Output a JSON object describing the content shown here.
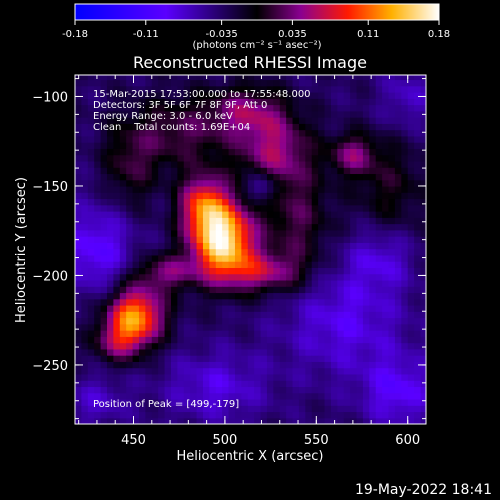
{
  "chart_data": {
    "type": "heatmap",
    "title": "Reconstructed RHESSI Image",
    "xlabel": "Heliocentric X (arcsec)",
    "ylabel": "Heliocentric Y (arcsec)",
    "xlim": [
      418,
      610
    ],
    "ylim": [
      -283,
      -88
    ],
    "xticks": [
      450,
      500,
      550,
      600
    ],
    "yticks": [
      -100,
      -150,
      -200,
      -250
    ],
    "colorbar": {
      "min": -0.18,
      "max": 0.18,
      "ticks": [
        "-0.18",
        "-0.11",
        "-0.035",
        "0.035",
        "0.11",
        "0.18"
      ],
      "unit_label": "(photons cm⁻² s⁻¹ asec⁻²)"
    },
    "peak_position": [
      499,
      -179
    ],
    "sources": [
      {
        "x": 499,
        "y": -180,
        "sx": 12,
        "sy": 15,
        "amp": 0.2
      },
      {
        "x": 488,
        "y": -160,
        "sx": 9,
        "sy": 12,
        "amp": 0.11
      },
      {
        "x": 521,
        "y": -198,
        "sx": 15,
        "sy": 8,
        "amp": 0.08
      },
      {
        "x": 451,
        "y": -222,
        "sx": 11,
        "sy": 11,
        "amp": 0.16
      },
      {
        "x": 442,
        "y": -237,
        "sx": 10,
        "sy": 8,
        "amp": 0.07
      },
      {
        "x": 468,
        "y": -198,
        "sx": 12,
        "sy": 7,
        "amp": 0.07
      },
      {
        "x": 527,
        "y": -130,
        "sx": 14,
        "sy": 14,
        "amp": 0.08
      },
      {
        "x": 512,
        "y": -108,
        "sx": 15,
        "sy": 10,
        "amp": 0.07
      },
      {
        "x": 474,
        "y": -120,
        "sx": 20,
        "sy": 14,
        "amp": 0.055
      },
      {
        "x": 448,
        "y": -140,
        "sx": 10,
        "sy": 16,
        "amp": 0.045
      },
      {
        "x": 540,
        "y": -170,
        "sx": 12,
        "sy": 22,
        "amp": 0.055
      },
      {
        "x": 570,
        "y": -132,
        "sx": 9,
        "sy": 8,
        "amp": 0.07
      },
      {
        "x": 590,
        "y": -150,
        "sx": 14,
        "sy": 18,
        "amp": 0.04
      },
      {
        "x": 520,
        "y": -150,
        "sx": 6,
        "sy": 6,
        "amp": -0.06
      },
      {
        "x": 430,
        "y": -185,
        "sx": 14,
        "sy": 18,
        "amp": -0.06
      },
      {
        "x": 565,
        "y": -225,
        "sx": 24,
        "sy": 22,
        "amp": -0.05
      },
      {
        "x": 595,
        "y": -265,
        "sx": 14,
        "sy": 14,
        "amp": -0.055
      },
      {
        "x": 495,
        "y": -262,
        "sx": 20,
        "sy": 14,
        "amp": -0.045
      },
      {
        "x": 585,
        "y": -190,
        "sx": 12,
        "sy": 12,
        "amp": -0.04
      },
      {
        "x": 600,
        "y": -100,
        "sx": 10,
        "sy": 12,
        "amp": -0.035
      },
      {
        "x": 430,
        "y": -270,
        "sx": 12,
        "sy": 10,
        "amp": -0.035
      }
    ]
  },
  "info": {
    "line1": "15-Mar-2015 17:53:00.000 to 17:55:48.000",
    "line2": "Detectors: 3F 5F 6F 7F 8F 9F, Att 0",
    "line3": "Energy Range: 3.0 - 6.0 keV",
    "line4": "Clean    Total counts: 1.69E+04",
    "peak_label": "Position of Peak = [499,-179]"
  },
  "footer": {
    "datetime": "19-May-2022 18:41"
  }
}
